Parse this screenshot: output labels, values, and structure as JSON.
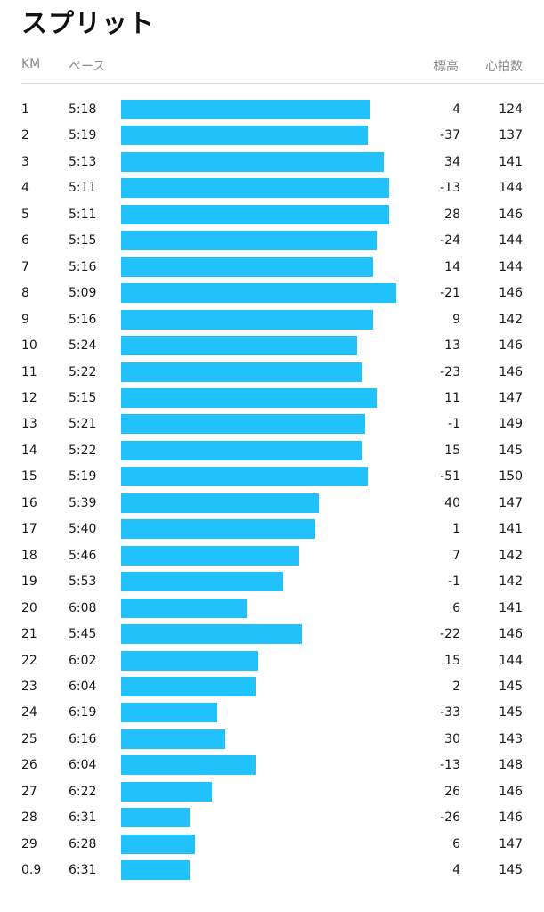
{
  "title": "スプリット",
  "columns": {
    "km": "KM",
    "pace": "ペース",
    "elevation": "標高",
    "heart_rate": "心拍数"
  },
  "colors": {
    "bar": "#21c1fb"
  },
  "splits": [
    {
      "km": "1",
      "pace": "5:18",
      "elevation": "4",
      "heart_rate": "124",
      "bar_fraction": 0.906
    },
    {
      "km": "2",
      "pace": "5:19",
      "elevation": "-37",
      "heart_rate": "137",
      "bar_fraction": 0.896
    },
    {
      "km": "3",
      "pace": "5:13",
      "elevation": "34",
      "heart_rate": "141",
      "bar_fraction": 0.955
    },
    {
      "km": "4",
      "pace": "5:11",
      "elevation": "-13",
      "heart_rate": "144",
      "bar_fraction": 0.974
    },
    {
      "km": "5",
      "pace": "5:11",
      "elevation": "28",
      "heart_rate": "146",
      "bar_fraction": 0.974
    },
    {
      "km": "6",
      "pace": "5:15",
      "elevation": "-24",
      "heart_rate": "144",
      "bar_fraction": 0.929
    },
    {
      "km": "7",
      "pace": "5:16",
      "elevation": "14",
      "heart_rate": "144",
      "bar_fraction": 0.916
    },
    {
      "km": "8",
      "pace": "5:09",
      "elevation": "-21",
      "heart_rate": "146",
      "bar_fraction": 1.0
    },
    {
      "km": "9",
      "pace": "5:16",
      "elevation": "9",
      "heart_rate": "142",
      "bar_fraction": 0.916
    },
    {
      "km": "10",
      "pace": "5:24",
      "elevation": "13",
      "heart_rate": "146",
      "bar_fraction": 0.858
    },
    {
      "km": "11",
      "pace": "5:22",
      "elevation": "-23",
      "heart_rate": "146",
      "bar_fraction": 0.877
    },
    {
      "km": "12",
      "pace": "5:15",
      "elevation": "11",
      "heart_rate": "147",
      "bar_fraction": 0.929
    },
    {
      "km": "13",
      "pace": "5:21",
      "elevation": "-1",
      "heart_rate": "149",
      "bar_fraction": 0.887
    },
    {
      "km": "14",
      "pace": "5:22",
      "elevation": "15",
      "heart_rate": "145",
      "bar_fraction": 0.877
    },
    {
      "km": "15",
      "pace": "5:19",
      "elevation": "-51",
      "heart_rate": "150",
      "bar_fraction": 0.896
    },
    {
      "km": "16",
      "pace": "5:39",
      "elevation": "40",
      "heart_rate": "147",
      "bar_fraction": 0.718
    },
    {
      "km": "17",
      "pace": "5:40",
      "elevation": "1",
      "heart_rate": "141",
      "bar_fraction": 0.706
    },
    {
      "km": "18",
      "pace": "5:46",
      "elevation": "7",
      "heart_rate": "142",
      "bar_fraction": 0.647
    },
    {
      "km": "19",
      "pace": "5:53",
      "elevation": "-1",
      "heart_rate": "142",
      "bar_fraction": 0.589
    },
    {
      "km": "20",
      "pace": "6:08",
      "elevation": "6",
      "heart_rate": "141",
      "bar_fraction": 0.456
    },
    {
      "km": "21",
      "pace": "5:45",
      "elevation": "-22",
      "heart_rate": "146",
      "bar_fraction": 0.657
    },
    {
      "km": "22",
      "pace": "6:02",
      "elevation": "15",
      "heart_rate": "144",
      "bar_fraction": 0.498
    },
    {
      "km": "23",
      "pace": "6:04",
      "elevation": "2",
      "heart_rate": "145",
      "bar_fraction": 0.489
    },
    {
      "km": "24",
      "pace": "6:19",
      "elevation": "-33",
      "heart_rate": "145",
      "bar_fraction": 0.35
    },
    {
      "km": "25",
      "pace": "6:16",
      "elevation": "30",
      "heart_rate": "143",
      "bar_fraction": 0.379
    },
    {
      "km": "26",
      "pace": "6:04",
      "elevation": "-13",
      "heart_rate": "148",
      "bar_fraction": 0.489
    },
    {
      "km": "27",
      "pace": "6:22",
      "elevation": "26",
      "heart_rate": "146",
      "bar_fraction": 0.33
    },
    {
      "km": "28",
      "pace": "6:31",
      "elevation": "-26",
      "heart_rate": "146",
      "bar_fraction": 0.249
    },
    {
      "km": "29",
      "pace": "6:28",
      "elevation": "6",
      "heart_rate": "147",
      "bar_fraction": 0.269
    },
    {
      "km": "0.9",
      "pace": "6:31",
      "elevation": "4",
      "heart_rate": "145",
      "bar_fraction": 0.249
    }
  ]
}
